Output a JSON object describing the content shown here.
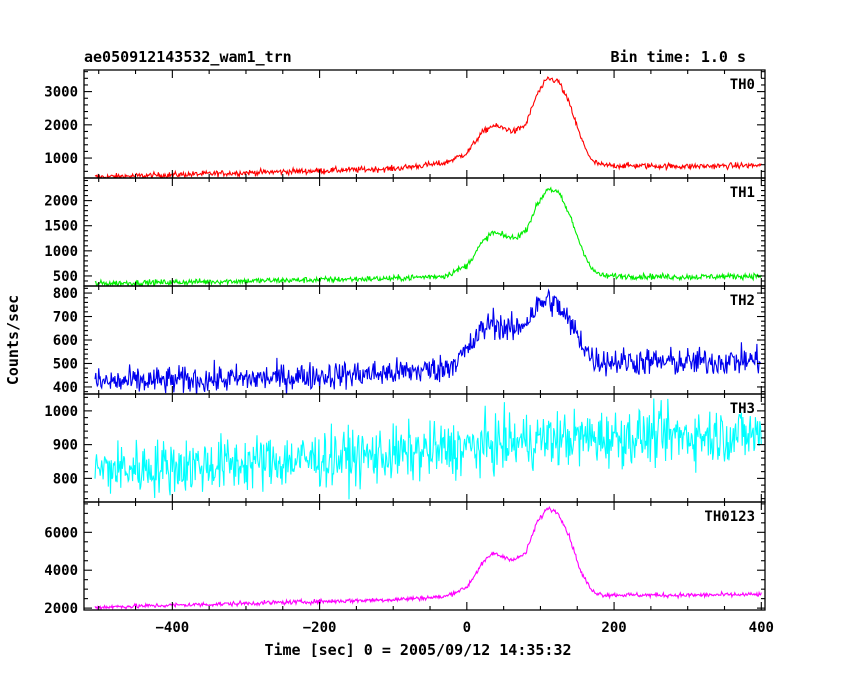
{
  "header": {
    "title": "ae050912143532_wam1_trn",
    "bin_time": "Bin time: 1.0 s"
  },
  "axes": {
    "xlabel": "Time [sec] 0 = 2005/09/12 14:35:32",
    "ylabel": "Counts/sec"
  },
  "chart_data": {
    "type": "line",
    "xlim": [
      -520,
      405
    ],
    "x_ticks": [
      -400,
      -200,
      0,
      200,
      400
    ],
    "x_minor_step": 50,
    "grid": false,
    "bin_time_s": 1.0,
    "panels": [
      {
        "name": "TH0",
        "color": "#ff0000",
        "ylim": [
          400,
          3650
        ],
        "y_ticks": [
          1000,
          2000,
          3000
        ],
        "y_minor_step": 200,
        "noise": 45,
        "profile": [
          [
            -500,
            430
          ],
          [
            -300,
            560
          ],
          [
            -100,
            680
          ],
          [
            -30,
            850
          ],
          [
            0,
            1150
          ],
          [
            20,
            1750
          ],
          [
            35,
            1980
          ],
          [
            50,
            1900
          ],
          [
            65,
            1800
          ],
          [
            80,
            2000
          ],
          [
            95,
            2900
          ],
          [
            110,
            3400
          ],
          [
            125,
            3300
          ],
          [
            140,
            2600
          ],
          [
            155,
            1600
          ],
          [
            170,
            900
          ],
          [
            185,
            780
          ],
          [
            300,
            750
          ],
          [
            400,
            780
          ]
        ]
      },
      {
        "name": "TH1",
        "color": "#00ee00",
        "ylim": [
          300,
          2450
        ],
        "y_ticks": [
          500,
          1000,
          1500,
          2000
        ],
        "y_minor_step": 100,
        "noise": 30,
        "profile": [
          [
            -500,
            350
          ],
          [
            -300,
            400
          ],
          [
            -100,
            450
          ],
          [
            -30,
            500
          ],
          [
            0,
            700
          ],
          [
            20,
            1150
          ],
          [
            35,
            1370
          ],
          [
            50,
            1300
          ],
          [
            65,
            1250
          ],
          [
            80,
            1400
          ],
          [
            95,
            1900
          ],
          [
            110,
            2250
          ],
          [
            125,
            2150
          ],
          [
            140,
            1700
          ],
          [
            155,
            1100
          ],
          [
            170,
            620
          ],
          [
            185,
            500
          ],
          [
            300,
            480
          ],
          [
            400,
            500
          ]
        ]
      },
      {
        "name": "TH2",
        "color": "#0000ee",
        "ylim": [
          370,
          830
        ],
        "y_ticks": [
          400,
          500,
          600,
          700,
          800
        ],
        "y_minor_step": 20,
        "noise": 30,
        "profile": [
          [
            -500,
            420
          ],
          [
            -300,
            435
          ],
          [
            -100,
            460
          ],
          [
            -30,
            480
          ],
          [
            0,
            550
          ],
          [
            20,
            640
          ],
          [
            35,
            680
          ],
          [
            50,
            650
          ],
          [
            65,
            640
          ],
          [
            80,
            680
          ],
          [
            95,
            740
          ],
          [
            110,
            775
          ],
          [
            125,
            740
          ],
          [
            140,
            670
          ],
          [
            155,
            600
          ],
          [
            170,
            520
          ],
          [
            185,
            510
          ],
          [
            300,
            505
          ],
          [
            400,
            515
          ]
        ]
      },
      {
        "name": "TH3",
        "color": "#00ffff",
        "ylim": [
          730,
          1050
        ],
        "y_ticks": [
          800,
          900,
          1000
        ],
        "y_minor_step": 20,
        "noise": 42,
        "profile": [
          [
            -500,
            825
          ],
          [
            -300,
            845
          ],
          [
            -100,
            870
          ],
          [
            0,
            890
          ],
          [
            100,
            915
          ],
          [
            250,
            925
          ],
          [
            400,
            930
          ]
        ]
      },
      {
        "name": "TH0123",
        "color": "#ff00ff",
        "ylim": [
          1900,
          7600
        ],
        "y_ticks": [
          2000,
          4000,
          6000
        ],
        "y_minor_step": 500,
        "noise": 60,
        "profile": [
          [
            -500,
            2050
          ],
          [
            -300,
            2250
          ],
          [
            -100,
            2450
          ],
          [
            -30,
            2600
          ],
          [
            0,
            3100
          ],
          [
            20,
            4300
          ],
          [
            35,
            4900
          ],
          [
            50,
            4700
          ],
          [
            65,
            4550
          ],
          [
            80,
            4900
          ],
          [
            95,
            6500
          ],
          [
            110,
            7300
          ],
          [
            125,
            7000
          ],
          [
            140,
            5700
          ],
          [
            155,
            3900
          ],
          [
            170,
            2900
          ],
          [
            185,
            2700
          ],
          [
            300,
            2680
          ],
          [
            400,
            2720
          ]
        ]
      }
    ]
  }
}
